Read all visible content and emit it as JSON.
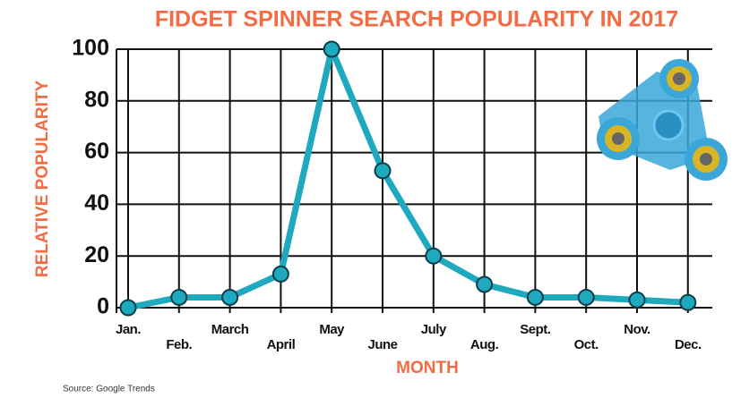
{
  "chart_data": {
    "type": "line",
    "title": "FIDGET SPINNER SEARCH POPULARITY IN 2017",
    "y_label": "RELATIVE POPULARITY",
    "x_label": "MONTH",
    "source": "Source: Google Trends",
    "categories": [
      "Jan.",
      "Feb.",
      "March",
      "April",
      "May",
      "June",
      "July",
      "Aug.",
      "Sept.",
      "Oct.",
      "Nov.",
      "Dec."
    ],
    "values": [
      0,
      4,
      4,
      13,
      100,
      53,
      20,
      9,
      4,
      4,
      3,
      2
    ],
    "color": "#1ea9bf",
    "ylim": [
      0,
      100
    ],
    "yticks": [
      0,
      20,
      40,
      60,
      80,
      100
    ],
    "grid": true
  }
}
